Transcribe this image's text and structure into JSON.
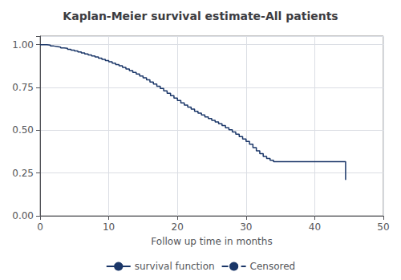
{
  "chart_data": {
    "type": "step",
    "title": "Kaplan-Meier survival estimate-All patients",
    "xlabel": "Follow up time in months",
    "x": [
      0,
      1,
      1.5,
      2,
      2.5,
      3,
      3.5,
      4,
      4.5,
      5,
      5.5,
      6,
      6.5,
      7,
      7.5,
      8,
      8.5,
      9,
      9.5,
      10,
      10.5,
      11,
      11.5,
      12,
      12.5,
      13,
      13.5,
      14,
      14.5,
      15,
      15.5,
      16,
      16.5,
      17,
      17.5,
      18,
      18.5,
      19,
      19.5,
      20,
      20.5,
      21,
      21.5,
      22,
      22.5,
      23,
      23.5,
      24,
      24.5,
      25,
      25.5,
      26,
      26.5,
      27,
      27.5,
      28,
      28.5,
      29,
      29.5,
      30,
      30.5,
      31,
      31.5,
      32,
      32.5,
      33,
      33.5,
      34,
      35,
      36,
      37,
      38,
      39,
      40,
      41,
      42,
      43,
      44,
      44.5
    ],
    "series": [
      {
        "name": "survival function",
        "color": "#1a3668",
        "line_style": "solid",
        "values": [
          1.0,
          0.997,
          0.992,
          0.989,
          0.986,
          0.981,
          0.978,
          0.973,
          0.968,
          0.963,
          0.957,
          0.952,
          0.946,
          0.94,
          0.934,
          0.928,
          0.921,
          0.914,
          0.907,
          0.9,
          0.892,
          0.884,
          0.876,
          0.867,
          0.858,
          0.848,
          0.838,
          0.828,
          0.817,
          0.806,
          0.794,
          0.782,
          0.77,
          0.757,
          0.744,
          0.73,
          0.716,
          0.702,
          0.688,
          0.674,
          0.66,
          0.647,
          0.635,
          0.623,
          0.611,
          0.6,
          0.589,
          0.578,
          0.568,
          0.558,
          0.548,
          0.538,
          0.527,
          0.515,
          0.503,
          0.49,
          0.477,
          0.463,
          0.449,
          0.435,
          0.418,
          0.398,
          0.38,
          0.363,
          0.347,
          0.335,
          0.325,
          0.316,
          0.316,
          0.316,
          0.316,
          0.316,
          0.316,
          0.316,
          0.316,
          0.316,
          0.316,
          0.316,
          0.21
        ]
      },
      {
        "name": "Censored",
        "color": "#1a3668",
        "line_style": "dashed",
        "values": [
          null,
          null,
          null,
          null,
          null,
          null,
          null,
          null,
          null,
          null,
          null,
          null,
          null,
          null,
          null,
          null,
          null,
          null,
          null,
          null,
          null,
          null,
          null,
          null,
          null,
          null,
          null,
          null,
          null,
          null,
          null,
          null,
          null,
          null,
          null,
          null,
          null,
          null,
          null,
          null,
          null,
          null,
          null,
          null,
          null,
          null,
          null,
          null,
          null,
          null,
          null,
          null,
          null,
          null,
          null,
          null,
          null,
          null,
          null,
          null,
          null,
          null,
          null,
          null,
          null,
          null,
          null,
          null,
          null,
          null,
          null,
          null,
          null,
          null,
          null,
          null,
          null,
          null,
          null
        ]
      }
    ],
    "xlim": [
      0,
      50
    ],
    "xticks": [
      0,
      10,
      20,
      30,
      40,
      50
    ],
    "ylim": [
      0.0,
      1.05
    ],
    "yticks": [
      {
        "value": 0.0,
        "label": "0.00"
      },
      {
        "value": 0.25,
        "label": "0.25"
      },
      {
        "value": 0.5,
        "label": "0.50"
      },
      {
        "value": 0.75,
        "label": "0.75"
      },
      {
        "value": 1.0,
        "label": "1.00"
      }
    ],
    "grid": true
  }
}
